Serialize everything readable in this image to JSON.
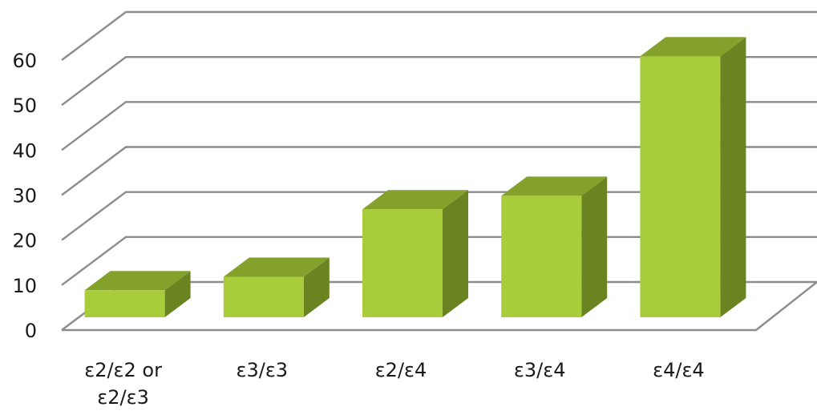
{
  "chart_data": {
    "type": "bar",
    "categories": [
      "ε2/ε2 or ε2/ε3",
      "ε3/ε3",
      "ε2/ε4",
      "ε3/ε4",
      "ε4/ε4"
    ],
    "values": [
      6,
      9,
      24,
      27,
      58
    ],
    "title": "",
    "xlabel": "",
    "ylabel": "",
    "ylim": [
      0,
      60
    ],
    "yticks": [
      0,
      10,
      20,
      30,
      40,
      50,
      60
    ],
    "grid": true,
    "legend": "none",
    "three_d": true,
    "colors": {
      "bar_front": "#a9cc3a",
      "bar_top": "#84a12c",
      "bar_side": "#6b8422",
      "grid": "#8c8c8c",
      "text": "#1a1a1a"
    }
  }
}
